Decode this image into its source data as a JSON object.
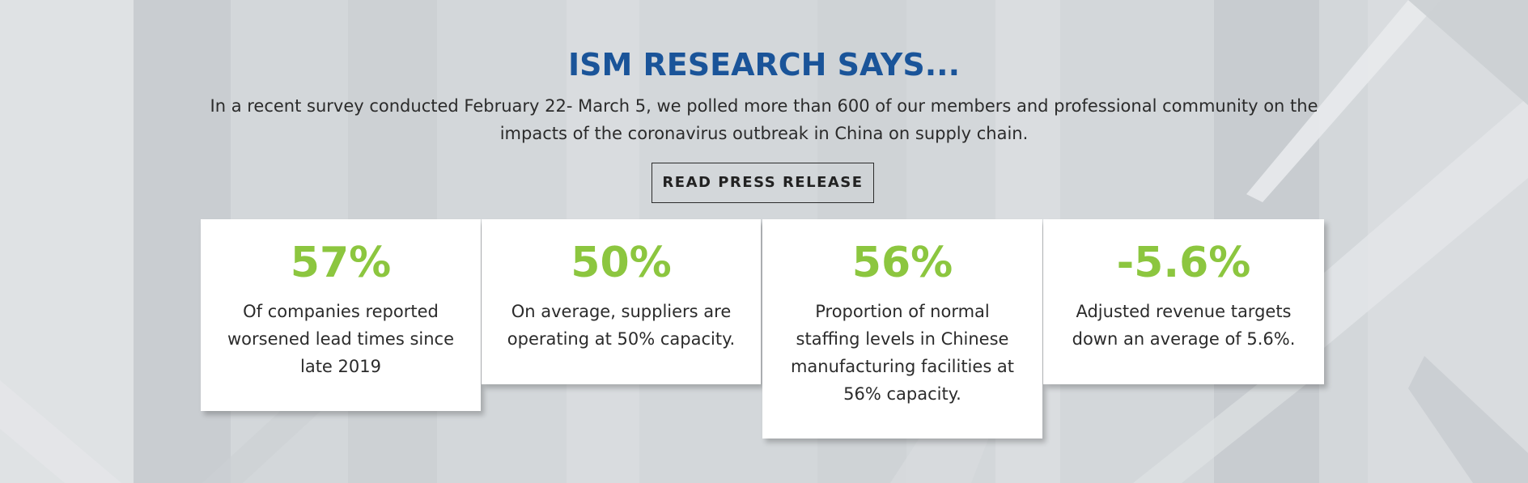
{
  "section": {
    "headline": "ISM RESEARCH SAYS...",
    "intro": "In a recent survey conducted February 22- March 5, we polled more than 600 of our members and professional community on the impacts of the coronavirus outbreak in China on supply chain.",
    "cta_label": "READ PRESS RELEASE"
  },
  "stats": [
    {
      "value": "57%",
      "description": "Of companies reported worsened lead times since late 2019"
    },
    {
      "value": "50%",
      "description": "On average, suppliers are operating at 50% capacity."
    },
    {
      "value": "56%",
      "description": "Proportion of normal staffing levels in Chinese manufacturing facilities at 56% capacity."
    },
    {
      "value": "-5.6%",
      "description": "Adjusted revenue targets down an average of 5.6%."
    }
  ],
  "colors": {
    "headline": "#1a5499",
    "stat_value": "#8cc63f",
    "body_text": "#2b2b2b",
    "background": "#d2d6d9",
    "card": "#ffffff"
  }
}
